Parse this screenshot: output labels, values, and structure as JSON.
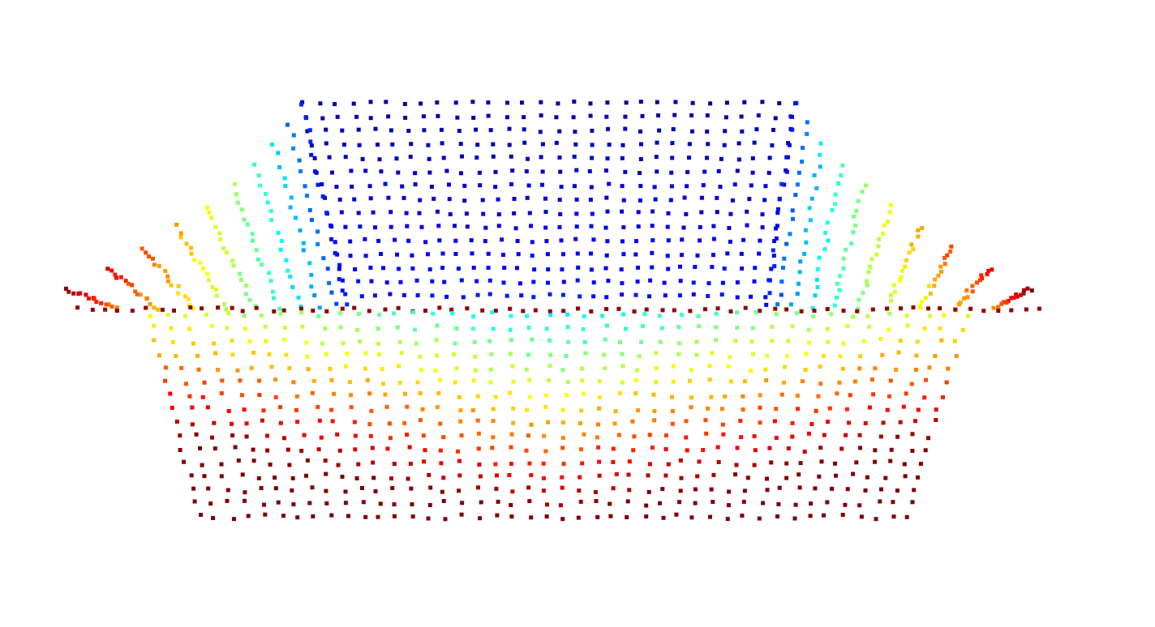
{
  "point_cloud": {
    "colormap": "jet",
    "colormap_stops": [
      "#00008f",
      "#0000ff",
      "#0080ff",
      "#00ffff",
      "#80ff80",
      "#ffff00",
      "#ff8000",
      "#ff0000",
      "#800000"
    ],
    "background_color": "#ffffff",
    "marker_shape": "square",
    "color_encoding": "depth"
  }
}
